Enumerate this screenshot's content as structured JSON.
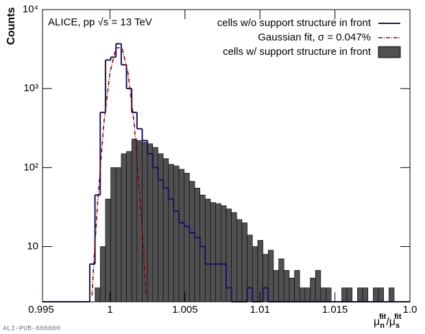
{
  "chart_data": {
    "type": "histogram",
    "annotation": "ALICE, pp √s = 13 TeV",
    "y_label": "Counts",
    "x_label_parts": [
      "μ",
      "n",
      "fit",
      "/",
      "μ",
      "s",
      "fit"
    ],
    "footer": "ALI-PUB-606060",
    "log_y": true,
    "xlim": [
      0.9955,
      1.02
    ],
    "ylim": [
      2,
      10000
    ],
    "xticks": [
      0.995,
      1,
      1.005,
      1.01,
      1.015,
      {
        "value": 1.02,
        "label": "1.0"
      }
    ],
    "yticks": [
      10,
      {
        "value": 100,
        "label": "10²"
      },
      {
        "value": 1000,
        "label": "10³"
      },
      {
        "value": 10000,
        "label": "10⁴"
      }
    ],
    "legend": "upper right",
    "bins": [
      0.9955,
      0.99585,
      0.9962,
      0.99655,
      0.9969,
      0.99725,
      0.9976,
      0.99795,
      0.9983,
      0.99865,
      0.999,
      0.99935,
      0.9997,
      1.00005,
      1.0004,
      1.00075,
      1.0011,
      1.00145,
      1.0018,
      1.00215,
      1.0025,
      1.00285,
      1.0032,
      1.00355,
      1.0039,
      1.00425,
      1.0046,
      1.00495,
      1.0053,
      1.00565,
      1.006,
      1.00635,
      1.0067,
      1.00705,
      1.0074,
      1.00775,
      1.0081,
      1.00845,
      1.0088,
      1.00915,
      1.0095,
      1.00985,
      1.0102,
      1.01055,
      1.0109,
      1.01125,
      1.0116,
      1.01195,
      1.0123,
      1.01265,
      1.013,
      1.01335,
      1.0137,
      1.01405,
      1.0144,
      1.01475,
      1.0151,
      1.01545,
      1.0158,
      1.01615,
      1.0165,
      1.01685,
      1.0172,
      1.01755,
      1.0179,
      1.01825,
      1.0186,
      1.01895,
      1.0193,
      1.01965,
      1.02
    ],
    "series": [
      {
        "name": "cells w/o support structure in front",
        "color": "#13135e",
        "style": "step",
        "values": [
          0,
          0,
          0,
          0,
          0,
          0,
          0,
          0,
          0,
          6,
          45,
          500,
          2300,
          2500,
          3700,
          2000,
          1000,
          500,
          310,
          220,
          150,
          100,
          70,
          55,
          40,
          28,
          20,
          18,
          15,
          13,
          10,
          6,
          6,
          6,
          6,
          3,
          0,
          0,
          0,
          3,
          0,
          0,
          3,
          0,
          0,
          0,
          0,
          0,
          0,
          0,
          0,
          0,
          0,
          0,
          0,
          0,
          0,
          0,
          0,
          0,
          0,
          0,
          0,
          0,
          0,
          0,
          0,
          0,
          0,
          0
        ]
      },
      {
        "name": "cells w/ support structure in front",
        "color": "#505050",
        "style": "filled",
        "values": [
          0,
          0,
          0,
          0,
          0,
          0,
          0,
          0,
          0,
          0,
          3,
          10,
          40,
          100,
          100,
          150,
          160,
          230,
          220,
          210,
          200,
          180,
          150,
          130,
          110,
          105,
          95,
          85,
          67,
          55,
          45,
          40,
          36,
          35,
          33,
          30,
          27,
          22,
          20,
          14,
          10,
          12,
          8,
          9,
          5,
          7,
          5,
          4,
          5,
          3,
          3,
          4,
          5,
          3,
          3,
          0,
          0,
          3,
          3,
          0,
          3,
          3,
          0,
          3,
          3,
          0,
          3,
          0,
          0,
          0
        ]
      }
    ],
    "fit": {
      "name": "Gaussian fit, σ = 0.047%",
      "color": "#8b0000",
      "x": [
        0.9988,
        0.999,
        0.9992,
        0.9996,
        1.0,
        1.0004,
        1.0008,
        1.0012,
        1.0016,
        1.002,
        1.0022,
        1.0024
      ],
      "values": [
        2.4,
        11,
        42,
        376,
        1594,
        3288,
        3288,
        1594,
        376,
        42,
        11,
        2.4
      ]
    }
  }
}
